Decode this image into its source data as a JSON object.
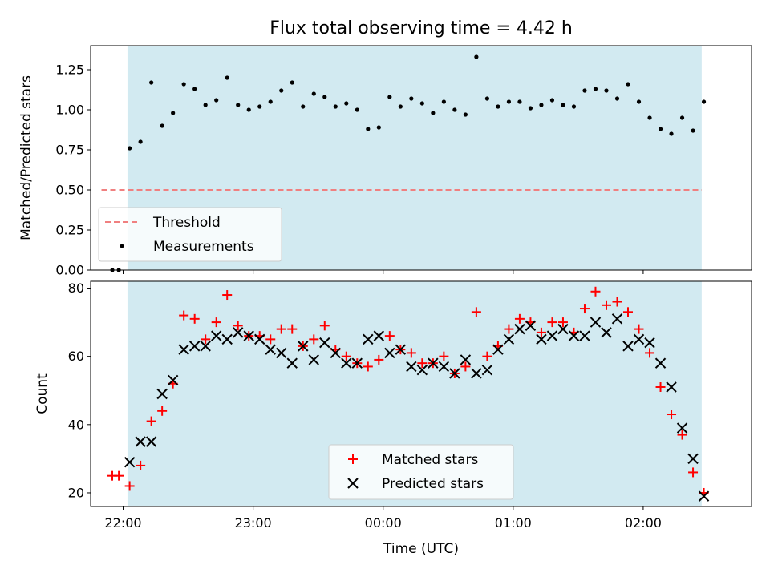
{
  "chart_data": [
    {
      "type": "scatter",
      "title": "Flux total observing time = 4.42 h",
      "ylabel": "Matched/Predicted stars",
      "ylim": [
        0,
        1.4
      ],
      "yticks": [
        "0.00",
        "0.25",
        "0.50",
        "0.75",
        "1.00",
        "1.25"
      ],
      "observing_window": [
        "22:02",
        "02:27"
      ],
      "legend": {
        "placement": "lower-left",
        "entries": [
          {
            "label": "Threshold",
            "style": "dashed-line",
            "color": "#f08080"
          },
          {
            "label": "Measurements",
            "style": "dot",
            "color": "#000000"
          }
        ]
      },
      "threshold": {
        "name": "Threshold",
        "value": 0.5,
        "x_range": [
          "21:50",
          "02:27"
        ],
        "color": "#f08080"
      },
      "series": [
        {
          "name": "Measurements",
          "color": "#000000",
          "x": [
            "21:55",
            "21:58",
            "22:03",
            "22:08",
            "22:13",
            "22:18",
            "22:23",
            "22:28",
            "22:33",
            "22:38",
            "22:43",
            "22:48",
            "22:53",
            "22:58",
            "23:03",
            "23:08",
            "23:13",
            "23:18",
            "23:23",
            "23:28",
            "23:33",
            "23:38",
            "23:43",
            "23:48",
            "23:53",
            "23:58",
            "00:03",
            "00:08",
            "00:13",
            "00:18",
            "00:23",
            "00:28",
            "00:33",
            "00:38",
            "00:43",
            "00:48",
            "00:53",
            "00:58",
            "01:03",
            "01:08",
            "01:13",
            "01:18",
            "01:23",
            "01:28",
            "01:33",
            "01:38",
            "01:43",
            "01:48",
            "01:53",
            "01:58",
            "02:03",
            "02:08",
            "02:13",
            "02:18",
            "02:23",
            "02:28"
          ],
          "y": [
            0.0,
            0.0,
            0.76,
            0.8,
            1.17,
            0.9,
            0.98,
            1.16,
            1.13,
            1.03,
            1.06,
            1.2,
            1.03,
            1.0,
            1.02,
            1.05,
            1.12,
            1.17,
            1.02,
            1.1,
            1.08,
            1.02,
            1.04,
            1.0,
            0.88,
            0.89,
            1.08,
            1.02,
            1.07,
            1.04,
            0.98,
            1.05,
            1.0,
            0.97,
            1.33,
            1.07,
            1.02,
            1.05,
            1.05,
            1.01,
            1.03,
            1.06,
            1.03,
            1.02,
            1.12,
            1.13,
            1.12,
            1.07,
            1.16,
            1.05,
            0.95,
            0.88,
            0.85,
            0.95,
            0.87,
            1.05
          ]
        }
      ]
    },
    {
      "type": "scatter",
      "xlabel": "Time (UTC)",
      "ylabel": "Count",
      "ylim": [
        16,
        82
      ],
      "yticks": [
        "20",
        "40",
        "60",
        "80"
      ],
      "xlim": [
        "21:45",
        "02:50"
      ],
      "xticks": [
        "22:00",
        "23:00",
        "00:00",
        "01:00",
        "02:00"
      ],
      "observing_window": [
        "22:02",
        "02:27"
      ],
      "legend": {
        "placement": "lower-center",
        "entries": [
          {
            "label": "Matched stars",
            "marker": "+",
            "color": "#ff0000"
          },
          {
            "label": "Predicted stars",
            "marker": "x",
            "color": "#000000"
          }
        ]
      },
      "series": [
        {
          "name": "Matched stars",
          "marker": "+",
          "color": "#ff0000",
          "x": [
            "21:55",
            "21:58",
            "22:03",
            "22:08",
            "22:13",
            "22:18",
            "22:23",
            "22:28",
            "22:33",
            "22:38",
            "22:43",
            "22:48",
            "22:53",
            "22:58",
            "23:03",
            "23:08",
            "23:13",
            "23:18",
            "23:23",
            "23:28",
            "23:33",
            "23:38",
            "23:43",
            "23:48",
            "23:53",
            "23:58",
            "00:03",
            "00:08",
            "00:13",
            "00:18",
            "00:23",
            "00:28",
            "00:33",
            "00:38",
            "00:43",
            "00:48",
            "00:53",
            "00:58",
            "01:03",
            "01:08",
            "01:13",
            "01:18",
            "01:23",
            "01:28",
            "01:33",
            "01:38",
            "01:43",
            "01:48",
            "01:53",
            "01:58",
            "02:03",
            "02:08",
            "02:13",
            "02:18",
            "02:23",
            "02:28"
          ],
          "y": [
            25,
            25,
            22,
            28,
            41,
            44,
            52,
            72,
            71,
            65,
            70,
            78,
            69,
            66,
            66,
            65,
            68,
            68,
            63,
            65,
            69,
            62,
            60,
            58,
            57,
            59,
            66,
            62,
            61,
            58,
            58,
            60,
            55,
            57,
            73,
            60,
            63,
            68,
            71,
            70,
            67,
            70,
            70,
            67,
            74,
            79,
            75,
            76,
            73,
            68,
            61,
            51,
            43,
            37,
            26,
            20
          ]
        },
        {
          "name": "Predicted stars",
          "marker": "x",
          "color": "#000000",
          "x": [
            "22:03",
            "22:08",
            "22:13",
            "22:18",
            "22:23",
            "22:28",
            "22:33",
            "22:38",
            "22:43",
            "22:48",
            "22:53",
            "22:58",
            "23:03",
            "23:08",
            "23:13",
            "23:18",
            "23:23",
            "23:28",
            "23:33",
            "23:38",
            "23:43",
            "23:48",
            "23:53",
            "23:58",
            "00:03",
            "00:08",
            "00:13",
            "00:18",
            "00:23",
            "00:28",
            "00:33",
            "00:38",
            "00:43",
            "00:48",
            "00:53",
            "00:58",
            "01:03",
            "01:08",
            "01:13",
            "01:18",
            "01:23",
            "01:28",
            "01:33",
            "01:38",
            "01:43",
            "01:48",
            "01:53",
            "01:58",
            "02:03",
            "02:08",
            "02:13",
            "02:18",
            "02:23",
            "02:28"
          ],
          "y": [
            29,
            35,
            35,
            49,
            53,
            62,
            63,
            63,
            66,
            65,
            67,
            66,
            65,
            62,
            61,
            58,
            63,
            59,
            64,
            61,
            58,
            58,
            65,
            66,
            61,
            62,
            57,
            56,
            58,
            57,
            55,
            59,
            55,
            56,
            62,
            65,
            68,
            69,
            65,
            66,
            68,
            66,
            66,
            70,
            67,
            71,
            63,
            65,
            64,
            58,
            51,
            39,
            30,
            19
          ]
        }
      ]
    }
  ]
}
